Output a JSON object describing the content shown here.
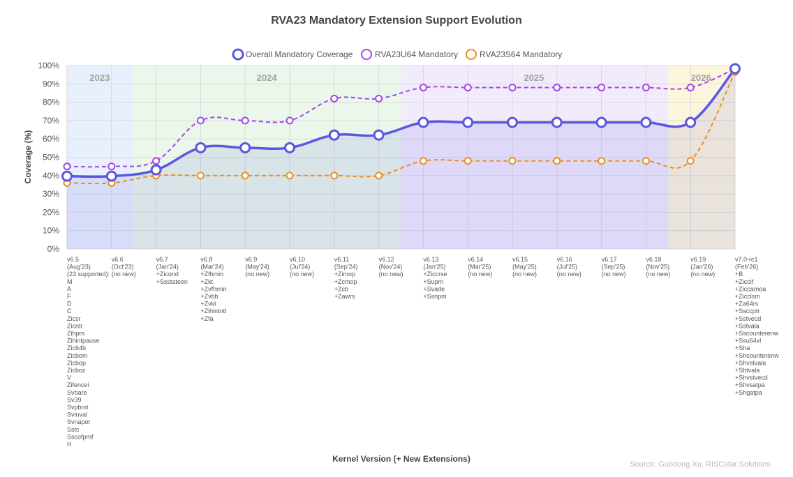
{
  "chart_data": {
    "type": "line",
    "title": "RVA23 Mandatory Extension Support Evolution",
    "xlabel": "Kernel Version (+ New Extensions)",
    "ylabel": "Coverage (%)",
    "ylim": [
      0,
      100
    ],
    "yticks": [
      "0%",
      "10%",
      "20%",
      "30%",
      "40%",
      "50%",
      "60%",
      "70%",
      "80%",
      "90%",
      "100%"
    ],
    "source": "Source: Guodong Xu, RISCstar Solutions",
    "legend": [
      "Overall Mandatory Coverage",
      "RVA23U64 Mandatory",
      "RVA23S64 Mandatory"
    ],
    "years": [
      "2023",
      "2024",
      "2025",
      "2026"
    ],
    "categories": [
      [
        "v6.5",
        "(Aug'23)",
        "(23 supported):",
        "M",
        "A",
        "F",
        "D",
        "C",
        "Zicsr",
        "Zicntr",
        "Zihpm",
        "Zihintpause",
        "Zic64b",
        "Zicbom",
        "Zicbop",
        "Zicboz",
        "V",
        "Zifencei",
        "Svbare",
        "Sv39",
        "Svpbmt",
        "Svinval",
        "Svnapot",
        "Sstc",
        "Sscofpmf",
        "H"
      ],
      [
        "v6.6",
        "(Oct'23)",
        "(no new)"
      ],
      [
        "v6.7",
        "(Jan'24)",
        "+Zicond",
        "+Ssstateen"
      ],
      [
        "v6.8",
        "(Mar'24)",
        "+Zfhmin",
        "+Zkt",
        "+Zvfhmin",
        "+Zvbb",
        "+Zvkt",
        "+Zihintntl",
        "+Zfa"
      ],
      [
        "v6.9",
        "(May'24)",
        "(no new)"
      ],
      [
        "v6.10",
        "(Jul'24)",
        "(no new)"
      ],
      [
        "v6.11",
        "(Sep'24)",
        "+Zimop",
        "+Zcmop",
        "+Zcb",
        "+Zawrs"
      ],
      [
        "v6.12",
        "(Nov'24)",
        "(no new)"
      ],
      [
        "v6.13",
        "(Jan'25)",
        "+Ziccrse",
        "+Supm",
        "+Svade",
        "+Ssnpm"
      ],
      [
        "v6.14",
        "(Mar'25)",
        "(no new)"
      ],
      [
        "v6.15",
        "(May'25)",
        "(no new)"
      ],
      [
        "v6.16",
        "(Jul'25)",
        "(no new)"
      ],
      [
        "v6.17",
        "(Sep'25)",
        "(no new)"
      ],
      [
        "v6.18",
        "(Nov'25)",
        "(no new)"
      ],
      [
        "v6.19",
        "(Jan'26)",
        "(no new)"
      ],
      [
        "v7.0-rc1",
        "(Feb'26)",
        "+B",
        "+Ziccif",
        "+Ziccamoa",
        "+Zicclsm",
        "+Za64rs",
        "+Ssccptr",
        "+Sstvecd",
        "+Sstvala",
        "+Sscounterenw",
        "+Ssu64xl",
        "+Sha",
        "+Shcounterenw",
        "+Shvstvala",
        "+Shtvala",
        "+Shvstvecd",
        "+Shvsatpa",
        "+Shgatpa"
      ]
    ],
    "series": [
      {
        "name": "Overall Mandatory Coverage",
        "color": "#5b57e0",
        "dashed": false,
        "values": [
          39.7,
          39.7,
          43.1,
          55.2,
          55.2,
          55.2,
          62.1,
          62.1,
          69.0,
          69.0,
          69.0,
          69.0,
          69.0,
          69.0,
          69.0,
          98.3
        ]
      },
      {
        "name": "RVA23U64 Mandatory",
        "color": "#a347e8",
        "dashed": true,
        "values": [
          45,
          45,
          48,
          70,
          70,
          70,
          82,
          82,
          88,
          88,
          88,
          88,
          88,
          88,
          88,
          98.3
        ]
      },
      {
        "name": "RVA23S64 Mandatory",
        "color": "#ec8f1f",
        "dashed": true,
        "values": [
          36,
          36,
          40,
          40,
          40,
          40,
          40,
          40,
          48,
          48,
          48,
          48,
          48,
          48,
          48,
          96.5
        ]
      }
    ]
  }
}
